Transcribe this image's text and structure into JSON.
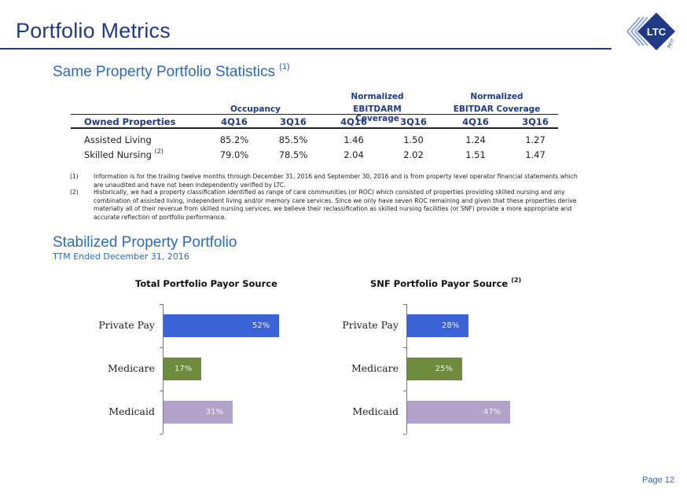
{
  "page": {
    "title": "Portfolio Metrics",
    "page_number": "Page 12",
    "logo_text": "LTC",
    "logo_subtext": "REIT"
  },
  "same_property": {
    "title": "Same Property Portfolio Statistics",
    "title_note": "(1)",
    "group_headers": {
      "occupancy": "Occupancy",
      "ebitdarm_top": "Normalized",
      "ebitdarm_bottom": "EBITDARM Coverage",
      "ebitdar_top": "Normalized",
      "ebitdar_bottom": "EBITDAR Coverage"
    },
    "columns": [
      "Owned Properties",
      "4Q16",
      "3Q16",
      "4Q16",
      "3Q16",
      "4Q16",
      "3Q16"
    ],
    "rows": [
      {
        "label": "Assisted Living",
        "note": "",
        "values": [
          "85.2%",
          "85.5%",
          "1.46",
          "1.50",
          "1.24",
          "1.27"
        ]
      },
      {
        "label": "Skilled Nursing",
        "note": "(2)",
        "values": [
          "79.0%",
          "78.5%",
          "2.04",
          "2.02",
          "1.51",
          "1.47"
        ]
      }
    ],
    "footnotes": [
      {
        "num": "(1)",
        "text": "Information is for the trailing twelve months through December 31, 2016 and September 30, 2016 and is from property level operator financial statements which are unaudited and have not been independently verified by LTC."
      },
      {
        "num": "(2)",
        "text": "Historically, we had a property classification identified as range of care communities (or ROC) which consisted of properties providing skilled nursing and any combination of assisted living, independent living and/or memory care services. Since we only have seven ROC remaining and given that these properties derive materially all of their revenue from skilled nursing services, we believe their reclassification as skilled nursing facilities (or SNF) provide a more appropriate and accurate reflection of portfolio performance."
      }
    ]
  },
  "stabilized": {
    "title": "Stabilized Property Portfolio",
    "subtitle": "TTM Ended December 31, 2016"
  },
  "colors": {
    "private_pay": "#3b62d6",
    "medicare": "#6e8b3d",
    "medicaid": "#b3a2c9"
  },
  "chart_data": [
    {
      "type": "bar",
      "orientation": "horizontal",
      "title": "Total Portfolio Payor Source",
      "title_note": "",
      "categories": [
        "Private Pay",
        "Medicare",
        "Medicaid"
      ],
      "values": [
        52,
        17,
        31
      ],
      "labels": [
        "52%",
        "17%",
        "31%"
      ],
      "xlim": [
        0,
        55
      ]
    },
    {
      "type": "bar",
      "orientation": "horizontal",
      "title": "SNF Portfolio Payor Source",
      "title_note": "(2)",
      "categories": [
        "Private Pay",
        "Medicare",
        "Medicaid"
      ],
      "values": [
        28,
        25,
        47
      ],
      "labels": [
        "28%",
        "25%",
        "47%"
      ],
      "xlim": [
        0,
        55
      ]
    }
  ]
}
